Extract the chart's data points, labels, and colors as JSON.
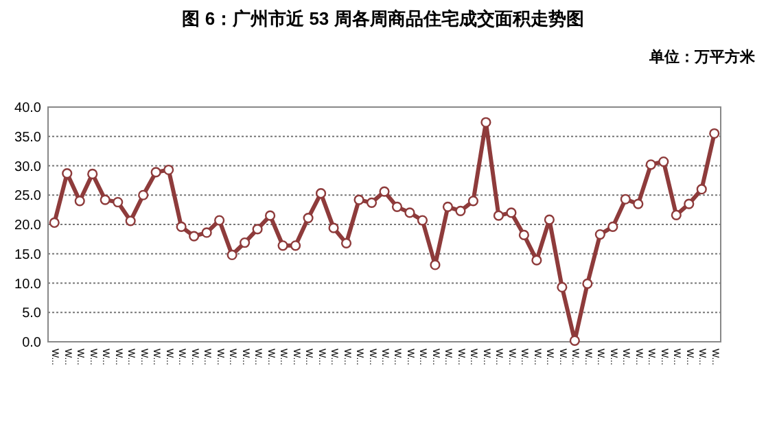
{
  "chart_data": {
    "type": "line",
    "title": "图 6：广州市近 53 周各周商品住宅成交面积走势图",
    "ylabel": "单位：万平方米",
    "categories": [
      "W...",
      "W...",
      "W...",
      "W...",
      "W...",
      "W...",
      "W...",
      "W...",
      "W...",
      "W...",
      "W...",
      "W...",
      "W...",
      "W...",
      "W...",
      "W...",
      "W...",
      "W...",
      "W...",
      "W...",
      "W...",
      "W...",
      "W...",
      "W...",
      "W...",
      "W...",
      "W...",
      "W...",
      "W...",
      "W...",
      "W...",
      "W...",
      "W...",
      "W...",
      "W...",
      "W...",
      "W...",
      "W...",
      "W...",
      "W...",
      "W...",
      "W...",
      "W...",
      "W...",
      "W...",
      "W...",
      "W...",
      "W...",
      "W...",
      "W...",
      "W...",
      "W...",
      "W..."
    ],
    "series": [
      {
        "color": "#8e3b3b",
        "values": [
          20.3,
          28.7,
          24.0,
          28.6,
          24.2,
          23.8,
          20.6,
          25.0,
          28.9,
          29.3,
          19.6,
          18.0,
          18.6,
          20.7,
          14.8,
          16.9,
          19.2,
          21.5,
          16.4,
          16.4,
          21.1,
          25.3,
          19.4,
          16.8,
          24.2,
          23.7,
          25.6,
          23.0,
          22.0,
          20.7,
          13.1,
          23.0,
          22.3,
          24.0,
          37.4,
          21.5,
          22.0,
          18.2,
          13.9,
          20.8,
          9.3,
          0.2,
          9.9,
          18.3,
          19.6,
          24.3,
          23.5,
          30.2,
          30.7,
          21.6,
          23.5,
          26.0,
          35.5
        ]
      }
    ],
    "ylim": [
      0,
      40
    ],
    "yticks": [
      {
        "value": 0,
        "label": "0.0"
      },
      {
        "value": 5,
        "label": "5.0"
      },
      {
        "value": 10,
        "label": "10.0"
      },
      {
        "value": 15,
        "label": "15.0"
      },
      {
        "value": 20,
        "label": "20.0"
      },
      {
        "value": 25,
        "label": "25.0"
      },
      {
        "value": 30,
        "label": "30.0"
      },
      {
        "value": 35,
        "label": "35.0"
      },
      {
        "value": 40,
        "label": "40.0"
      }
    ],
    "grid": "y",
    "marker": "circle",
    "line_style": "solid"
  }
}
